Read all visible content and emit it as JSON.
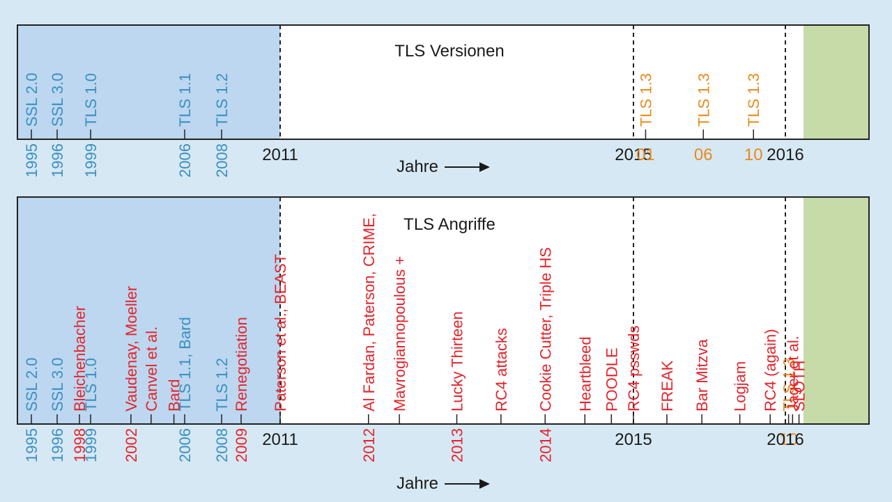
{
  "colors": {
    "blue": "#3a8fc2",
    "red": "#e3242b",
    "orange": "#e88a1a",
    "black": "#1a1a1a",
    "past_band": "#bcd7ef",
    "future_band": "#c6dba8",
    "background": "#d6e8f3"
  },
  "panel1": {
    "title": "TLS Versionen",
    "axis_label": "Jahre",
    "events": [
      {
        "label": "SSL 2.0",
        "year": 1995,
        "color": "blue"
      },
      {
        "label": "SSL 3.0",
        "year": 1996,
        "color": "blue"
      },
      {
        "label": "TLS 1.0",
        "year": 1999,
        "color": "blue"
      },
      {
        "label": "TLS 1.1",
        "year": 2006,
        "color": "blue"
      },
      {
        "label": "TLS 1.2",
        "year": 2008,
        "color": "blue"
      },
      {
        "label": "TLS 1.3",
        "year": 2015.08,
        "color": "orange"
      },
      {
        "label": "TLS 1.3",
        "year": 2015.46,
        "color": "orange"
      },
      {
        "label": "TLS 1.3",
        "year": 2015.79,
        "color": "orange"
      }
    ],
    "ticks": [
      {
        "label": "1995",
        "year": 1995,
        "color": "blue",
        "vertical": true
      },
      {
        "label": "1996",
        "year": 1996,
        "color": "blue",
        "vertical": true
      },
      {
        "label": "1999",
        "year": 1999,
        "color": "blue",
        "vertical": true
      },
      {
        "label": "2006",
        "year": 2006,
        "color": "blue",
        "vertical": true
      },
      {
        "label": "2008",
        "year": 2008,
        "color": "blue",
        "vertical": true
      },
      {
        "label": "2011",
        "year": 2011,
        "color": "black",
        "vertical": false
      },
      {
        "label": "2015",
        "year": 2015,
        "color": "black",
        "vertical": false
      },
      {
        "label": "01",
        "year": 2015.08,
        "color": "orange",
        "vertical": false
      },
      {
        "label": "06",
        "year": 2015.46,
        "color": "orange",
        "vertical": false
      },
      {
        "label": "10",
        "year": 2015.79,
        "color": "orange",
        "vertical": false
      },
      {
        "label": "2016",
        "year": 2016,
        "color": "black",
        "vertical": false
      }
    ]
  },
  "panel2": {
    "title": "TLS Angriffe",
    "axis_label": "Jahre",
    "events": [
      {
        "label": "SSL 2.0",
        "year": 1995,
        "color": "blue"
      },
      {
        "label": "SSL 3.0",
        "year": 1996,
        "color": "blue"
      },
      {
        "label": "Bleichenbacher",
        "year": 1998,
        "color": "red"
      },
      {
        "label": "TLS 1.0",
        "year": 1999,
        "color": "blue"
      },
      {
        "label": "Vaudenay, Moeller",
        "year": 2002,
        "color": "red"
      },
      {
        "label": "Canvel et al.",
        "year": 2003.5,
        "color": "red"
      },
      {
        "label": "Bard",
        "year": 2005.2,
        "color": "red"
      },
      {
        "label": "TLS 1.1, Bard",
        "year": 2006,
        "color": "blue"
      },
      {
        "label": "TLS 1.2",
        "year": 2008,
        "color": "blue"
      },
      {
        "label": "Renegotiation",
        "year": 2009,
        "color": "red"
      },
      {
        "label": "Paterson et al., BEAST",
        "year": 2011,
        "color": "red"
      },
      {
        "label": "Al Fardan, Paterson, CRIME,",
        "year": 2012,
        "color": "red"
      },
      {
        "label": "Mavrogiannopoulous +",
        "year": 2012.35,
        "color": "red"
      },
      {
        "label": "Lucky Thirteen",
        "year": 2013,
        "color": "red"
      },
      {
        "label": "RC4 attacks",
        "year": 2013.5,
        "color": "red"
      },
      {
        "label": "Cookie Cutter, Triple HS",
        "year": 2014,
        "color": "red"
      },
      {
        "label": "Heartbleed",
        "year": 2014.45,
        "color": "red"
      },
      {
        "label": "POODLE",
        "year": 2014.75,
        "color": "red"
      },
      {
        "label": "RC4 psswds",
        "year": 2015,
        "color": "red"
      },
      {
        "label": "FREAK",
        "year": 2015.22,
        "color": "red"
      },
      {
        "label": "Bar Mitzva",
        "year": 2015.45,
        "color": "red"
      },
      {
        "label": "Logjam",
        "year": 2015.7,
        "color": "red"
      },
      {
        "label": "RC4 (again)",
        "year": 2015.9,
        "color": "red"
      },
      {
        "label": "TLS 1.3",
        "year": 2016.2,
        "color": "orange"
      },
      {
        "label": "Jager et al.",
        "year": 2016.45,
        "color": "red"
      },
      {
        "label": "SLOTH",
        "year": 2016.85,
        "color": "red"
      }
    ],
    "ticks": [
      {
        "label": "1995",
        "year": 1995,
        "color": "blue",
        "vertical": true
      },
      {
        "label": "1996",
        "year": 1996,
        "color": "blue",
        "vertical": true
      },
      {
        "label": "1998",
        "year": 1998,
        "color": "red",
        "vertical": true
      },
      {
        "label": "1999",
        "year": 1999,
        "color": "blue",
        "vertical": true
      },
      {
        "label": "2002",
        "year": 2002,
        "color": "red",
        "vertical": true
      },
      {
        "label": "2006",
        "year": 2006,
        "color": "blue",
        "vertical": true
      },
      {
        "label": "2008",
        "year": 2008,
        "color": "blue",
        "vertical": true
      },
      {
        "label": "2009",
        "year": 2009,
        "color": "red",
        "vertical": true
      },
      {
        "label": "2011",
        "year": 2011,
        "color": "black",
        "vertical": false
      },
      {
        "label": "2012",
        "year": 2012,
        "color": "red",
        "vertical": true
      },
      {
        "label": "2013",
        "year": 2013,
        "color": "red",
        "vertical": true
      },
      {
        "label": "2014",
        "year": 2014,
        "color": "red",
        "vertical": true
      },
      {
        "label": "2015",
        "year": 2015,
        "color": "black",
        "vertical": false
      },
      {
        "label": "10",
        "year": 2016.2,
        "color": "orange",
        "vertical": false
      },
      {
        "label": "2016",
        "year": 2016,
        "color": "black",
        "vertical": false
      }
    ]
  }
}
